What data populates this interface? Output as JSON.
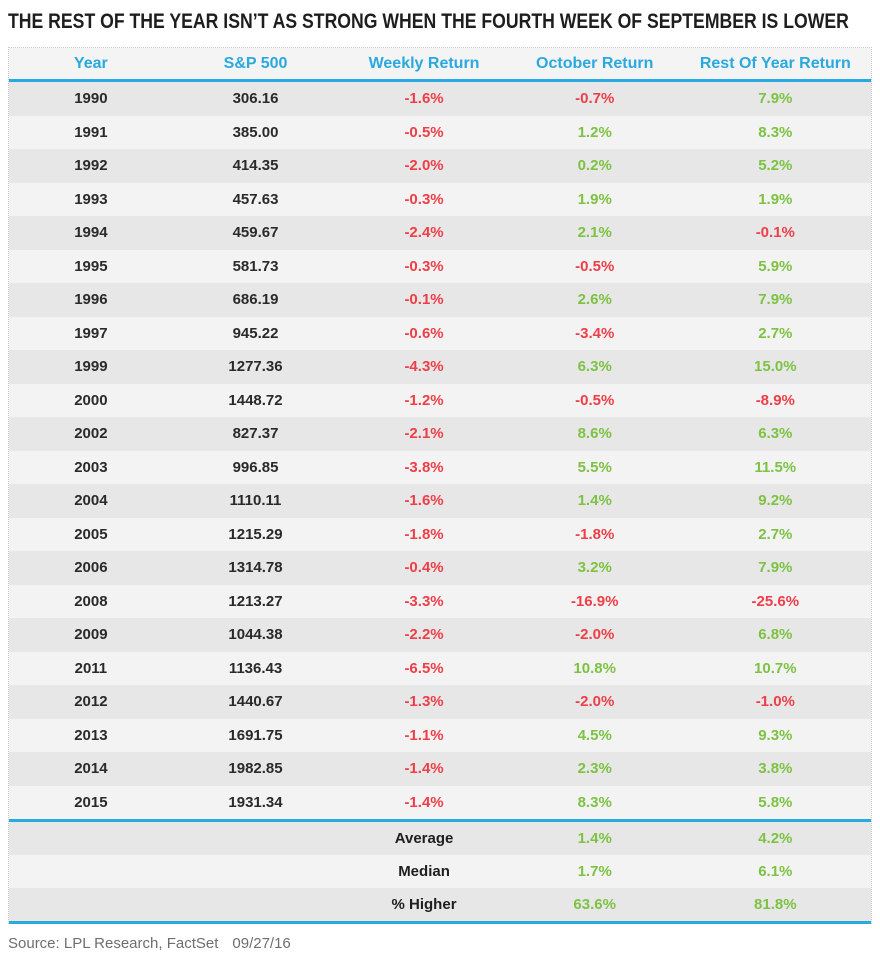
{
  "title": "THE REST OF THE YEAR ISN’T AS STRONG WHEN THE FOURTH WEEK OF SEPTEMBER IS LOWER",
  "source": {
    "label": "Source: LPL Research, FactSet",
    "date": "09/27/16"
  },
  "colors": {
    "header_blue": "#29A9E0",
    "positive_green": "#7DC242",
    "negative_red": "#EE3E48",
    "title_text": "#1E1E1E",
    "source_text": "#6D6E71"
  },
  "chart_data": {
    "type": "table",
    "title": "THE REST OF THE YEAR ISN’T AS STRONG WHEN THE FOURTH WEEK OF SEPTEMBER IS LOWER",
    "columns": [
      "Year",
      "S&P 500",
      "Weekly Return",
      "October Return",
      "Rest Of Year Return"
    ],
    "rows": [
      {
        "year": "1990",
        "sp500": "306.16",
        "weekly": "-1.6%",
        "october": "-0.7%",
        "rest": "7.9%"
      },
      {
        "year": "1991",
        "sp500": "385.00",
        "weekly": "-0.5%",
        "october": "1.2%",
        "rest": "8.3%"
      },
      {
        "year": "1992",
        "sp500": "414.35",
        "weekly": "-2.0%",
        "october": "0.2%",
        "rest": "5.2%"
      },
      {
        "year": "1993",
        "sp500": "457.63",
        "weekly": "-0.3%",
        "october": "1.9%",
        "rest": "1.9%"
      },
      {
        "year": "1994",
        "sp500": "459.67",
        "weekly": "-2.4%",
        "october": "2.1%",
        "rest": "-0.1%"
      },
      {
        "year": "1995",
        "sp500": "581.73",
        "weekly": "-0.3%",
        "october": "-0.5%",
        "rest": "5.9%"
      },
      {
        "year": "1996",
        "sp500": "686.19",
        "weekly": "-0.1%",
        "october": "2.6%",
        "rest": "7.9%"
      },
      {
        "year": "1997",
        "sp500": "945.22",
        "weekly": "-0.6%",
        "october": "-3.4%",
        "rest": "2.7%"
      },
      {
        "year": "1999",
        "sp500": "1277.36",
        "weekly": "-4.3%",
        "october": "6.3%",
        "rest": "15.0%"
      },
      {
        "year": "2000",
        "sp500": "1448.72",
        "weekly": "-1.2%",
        "october": "-0.5%",
        "rest": "-8.9%"
      },
      {
        "year": "2002",
        "sp500": "827.37",
        "weekly": "-2.1%",
        "october": "8.6%",
        "rest": "6.3%"
      },
      {
        "year": "2003",
        "sp500": "996.85",
        "weekly": "-3.8%",
        "october": "5.5%",
        "rest": "11.5%"
      },
      {
        "year": "2004",
        "sp500": "1110.11",
        "weekly": "-1.6%",
        "october": "1.4%",
        "rest": "9.2%"
      },
      {
        "year": "2005",
        "sp500": "1215.29",
        "weekly": "-1.8%",
        "october": "-1.8%",
        "rest": "2.7%"
      },
      {
        "year": "2006",
        "sp500": "1314.78",
        "weekly": "-0.4%",
        "october": "3.2%",
        "rest": "7.9%"
      },
      {
        "year": "2008",
        "sp500": "1213.27",
        "weekly": "-3.3%",
        "october": "-16.9%",
        "rest": "-25.6%"
      },
      {
        "year": "2009",
        "sp500": "1044.38",
        "weekly": "-2.2%",
        "october": "-2.0%",
        "rest": "6.8%"
      },
      {
        "year": "2011",
        "sp500": "1136.43",
        "weekly": "-6.5%",
        "october": "10.8%",
        "rest": "10.7%"
      },
      {
        "year": "2012",
        "sp500": "1440.67",
        "weekly": "-1.3%",
        "october": "-2.0%",
        "rest": "-1.0%"
      },
      {
        "year": "2013",
        "sp500": "1691.75",
        "weekly": "-1.1%",
        "october": "4.5%",
        "rest": "9.3%"
      },
      {
        "year": "2014",
        "sp500": "1982.85",
        "weekly": "-1.4%",
        "october": "2.3%",
        "rest": "3.8%"
      },
      {
        "year": "2015",
        "sp500": "1931.34",
        "weekly": "-1.4%",
        "october": "8.3%",
        "rest": "5.8%"
      }
    ],
    "summary": [
      {
        "label": "Average",
        "october": "1.4%",
        "rest": "4.2%"
      },
      {
        "label": "Median",
        "october": "1.7%",
        "rest": "6.1%"
      },
      {
        "label": "% Higher",
        "october": "63.6%",
        "rest": "81.8%"
      }
    ]
  }
}
